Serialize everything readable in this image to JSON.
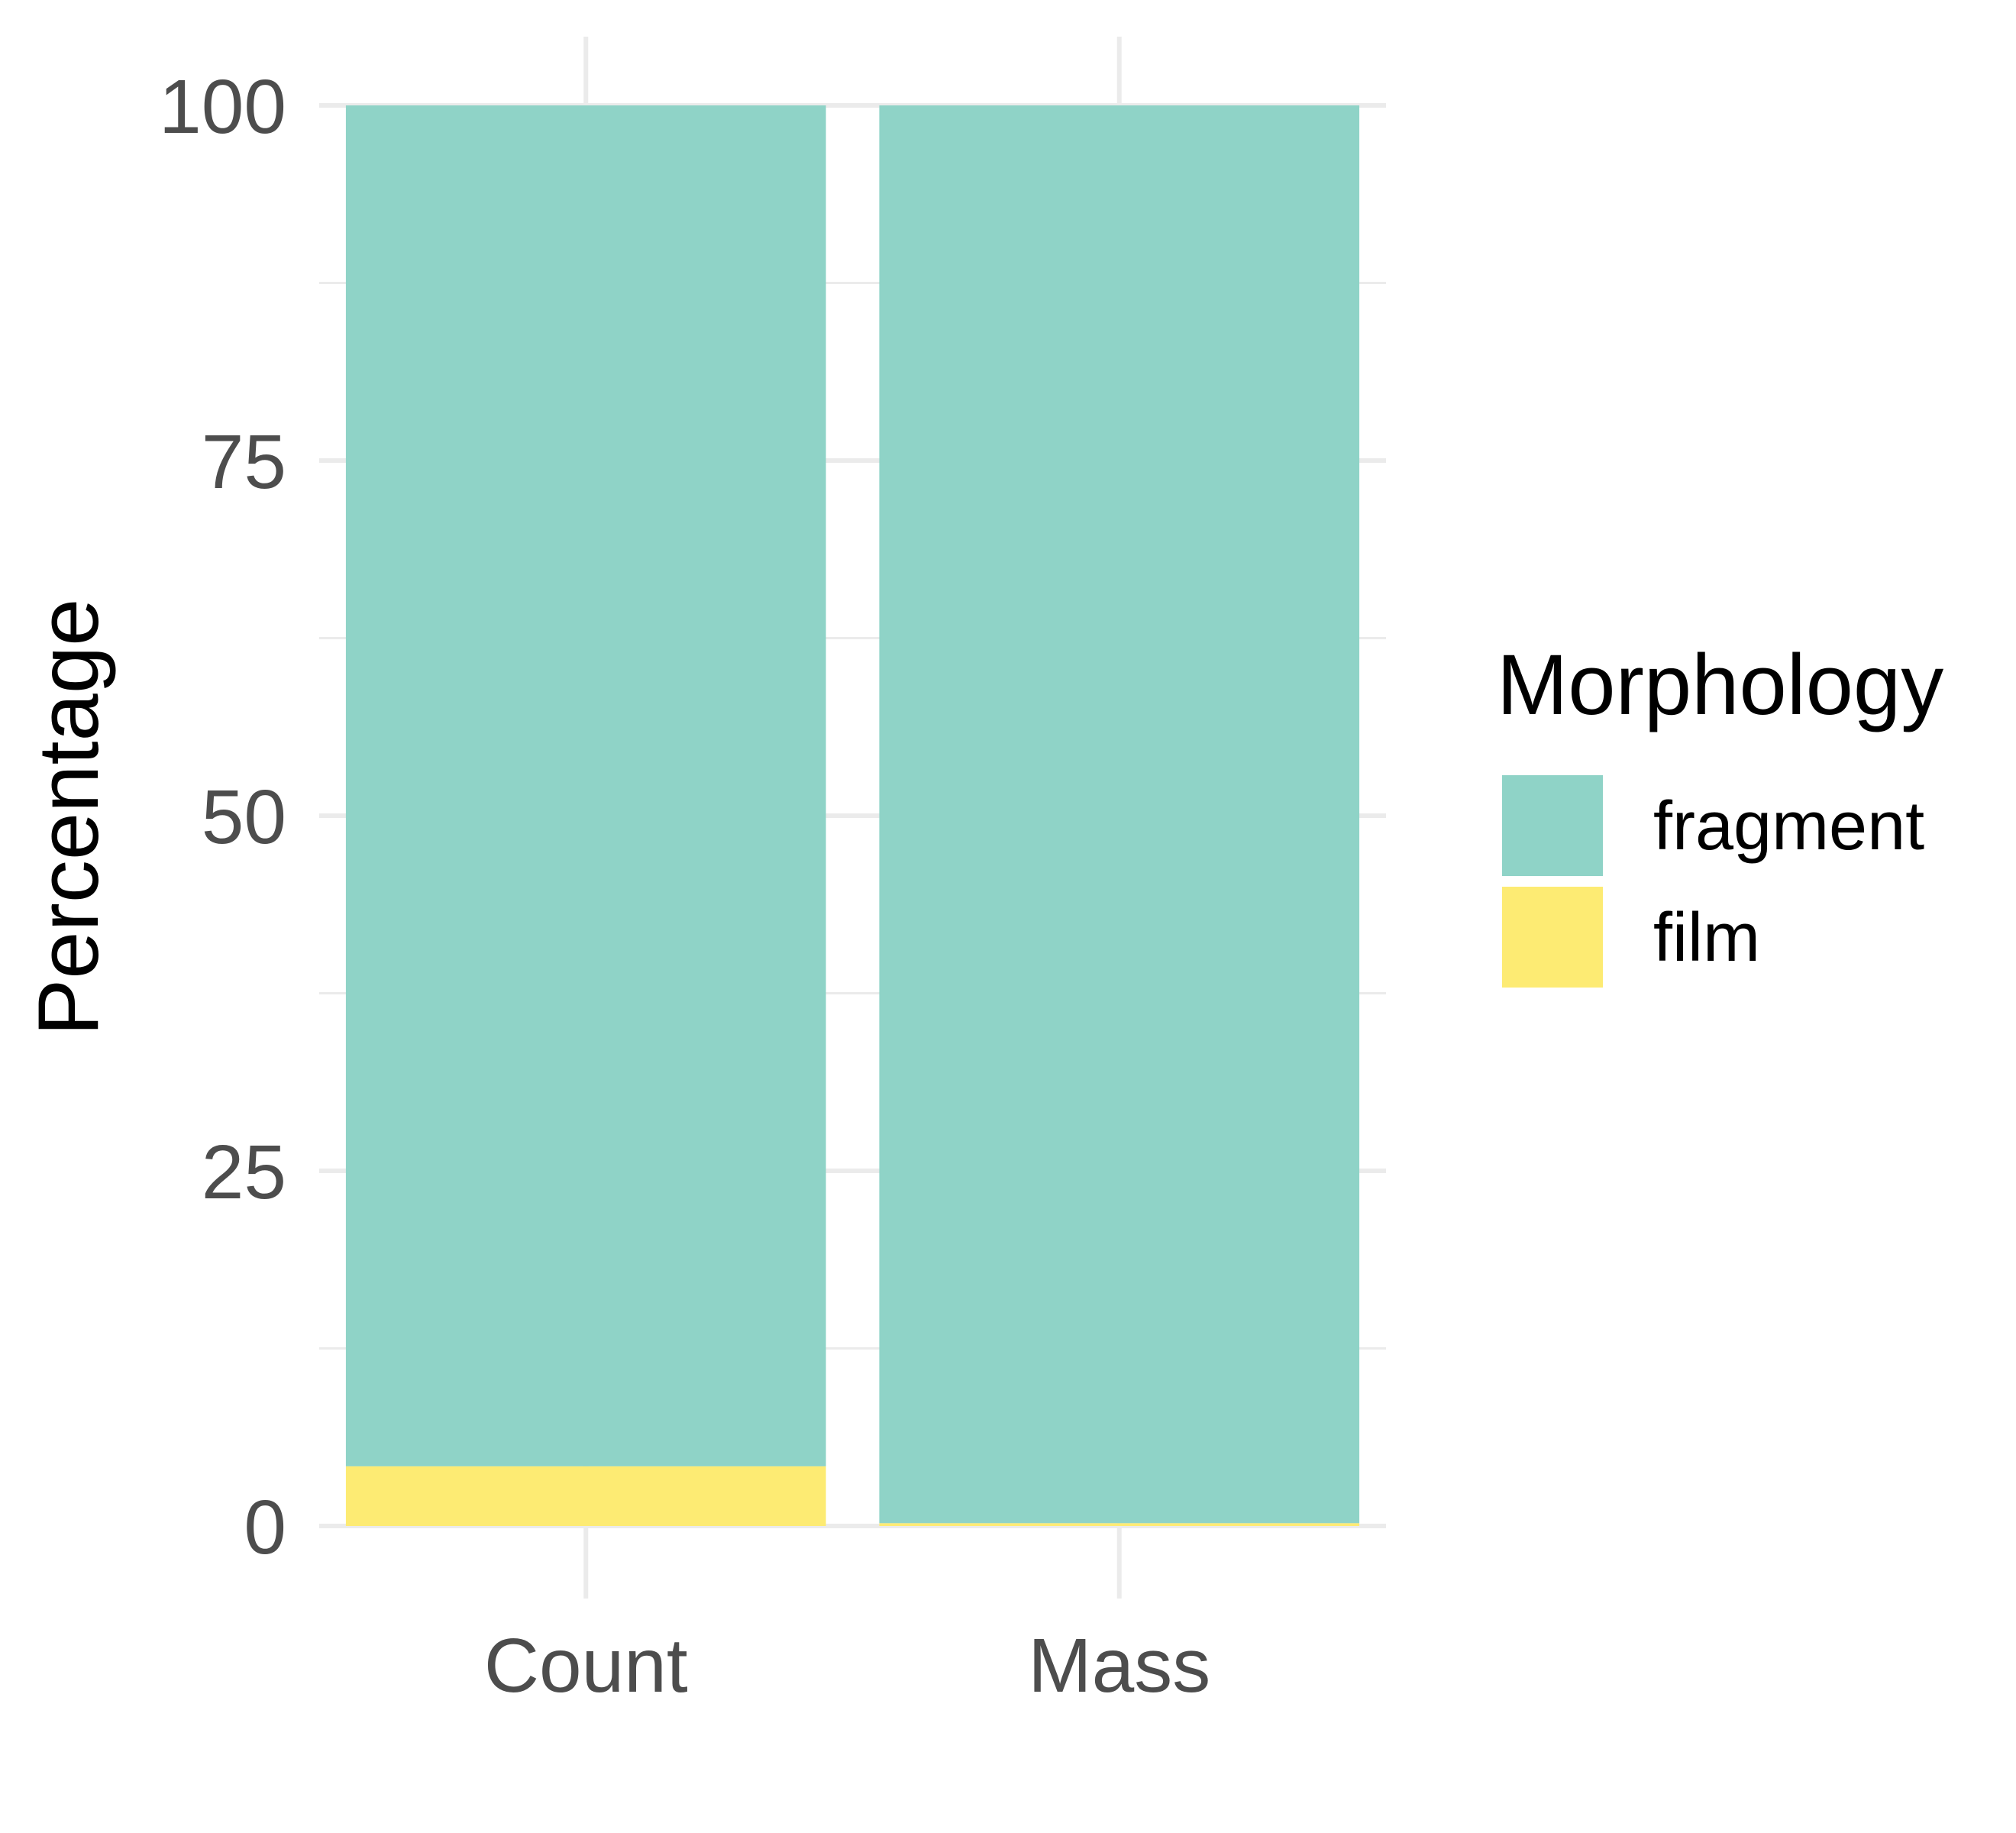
{
  "chart_data": {
    "type": "bar",
    "stacked": true,
    "categories": [
      "Count",
      "Mass"
    ],
    "series": [
      {
        "name": "film",
        "color": "#FDEB73",
        "values": [
          4.2,
          0.2
        ]
      },
      {
        "name": "fragment",
        "color": "#8FD3C7",
        "values": [
          95.8,
          99.8
        ]
      }
    ],
    "ylabel": "Percentage",
    "xlabel": "",
    "ylim": [
      0,
      100
    ],
    "yticks": [
      0,
      25,
      50,
      75,
      100
    ],
    "y_minor_ticks": [
      12.5,
      37.5,
      62.5,
      87.5
    ],
    "grid": true,
    "legend": {
      "title": "Morphology",
      "position": "right",
      "items": [
        {
          "label": "fragment",
          "color": "#8FD3C7"
        },
        {
          "label": "film",
          "color": "#FDEB73"
        }
      ]
    }
  }
}
